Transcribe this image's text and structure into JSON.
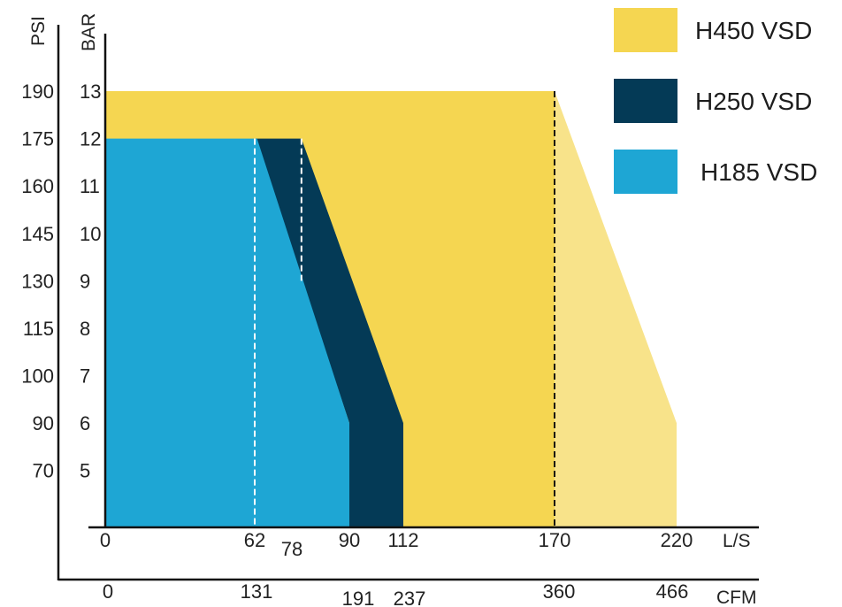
{
  "chart_data": {
    "type": "area",
    "y_units": {
      "psi_label": "PSI",
      "bar_label": "BAR"
    },
    "x_units": {
      "ls_label": "L/S",
      "cfm_label": "CFM"
    },
    "bar_ticks": [
      "5",
      "6",
      "7",
      "8",
      "9",
      "10",
      "11",
      "12",
      "13"
    ],
    "psi_ticks": [
      "70",
      "90",
      "100",
      "115",
      "130",
      "145",
      "160",
      "175",
      "190"
    ],
    "ls_ticks": [
      "0",
      "62",
      "78",
      "90",
      "112",
      "170",
      "220"
    ],
    "cfm_ticks": [
      "0",
      "131",
      "191",
      "237",
      "360",
      "466"
    ],
    "series": [
      {
        "name": "H450 VSD",
        "color": "#f5d651",
        "extension_color": "#f8e38a",
        "points_ls_bar": [
          [
            0,
            13
          ],
          [
            170,
            13
          ],
          [
            220,
            6
          ],
          [
            220,
            3.8
          ],
          [
            0,
            3.8
          ]
        ],
        "divider_ls": 170
      },
      {
        "name": "H250 VSD",
        "color": "#043a56",
        "points_ls_bar": [
          [
            62,
            12
          ],
          [
            80,
            12
          ],
          [
            112,
            6
          ],
          [
            112,
            3.8
          ],
          [
            90,
            3.8
          ],
          [
            90,
            6
          ],
          [
            62,
            12
          ]
        ]
      },
      {
        "name": "H185 VSD",
        "color": "#1ea6d4",
        "points_ls_bar": [
          [
            0,
            12
          ],
          [
            63,
            12
          ],
          [
            90,
            6
          ],
          [
            90,
            3.8
          ],
          [
            0,
            3.8
          ]
        ]
      }
    ],
    "dashed_markers": [
      {
        "ls": 62,
        "bar_top": 12,
        "bar_bottom": 3.8,
        "color": "#ffffff"
      },
      {
        "ls": 80,
        "bar_top": 12,
        "bar_bottom": 9,
        "color": "#ffffff"
      },
      {
        "ls": 170,
        "bar_top": 13,
        "bar_bottom": 3.8,
        "color": "#111111"
      }
    ],
    "legend": [
      {
        "label": "H450 VSD",
        "color": "#f5d651"
      },
      {
        "label": "H250 VSD",
        "color": "#043a56"
      },
      {
        "label": "H185 VSD",
        "color": "#1ea6d4"
      }
    ],
    "legend_position": "top-right"
  }
}
